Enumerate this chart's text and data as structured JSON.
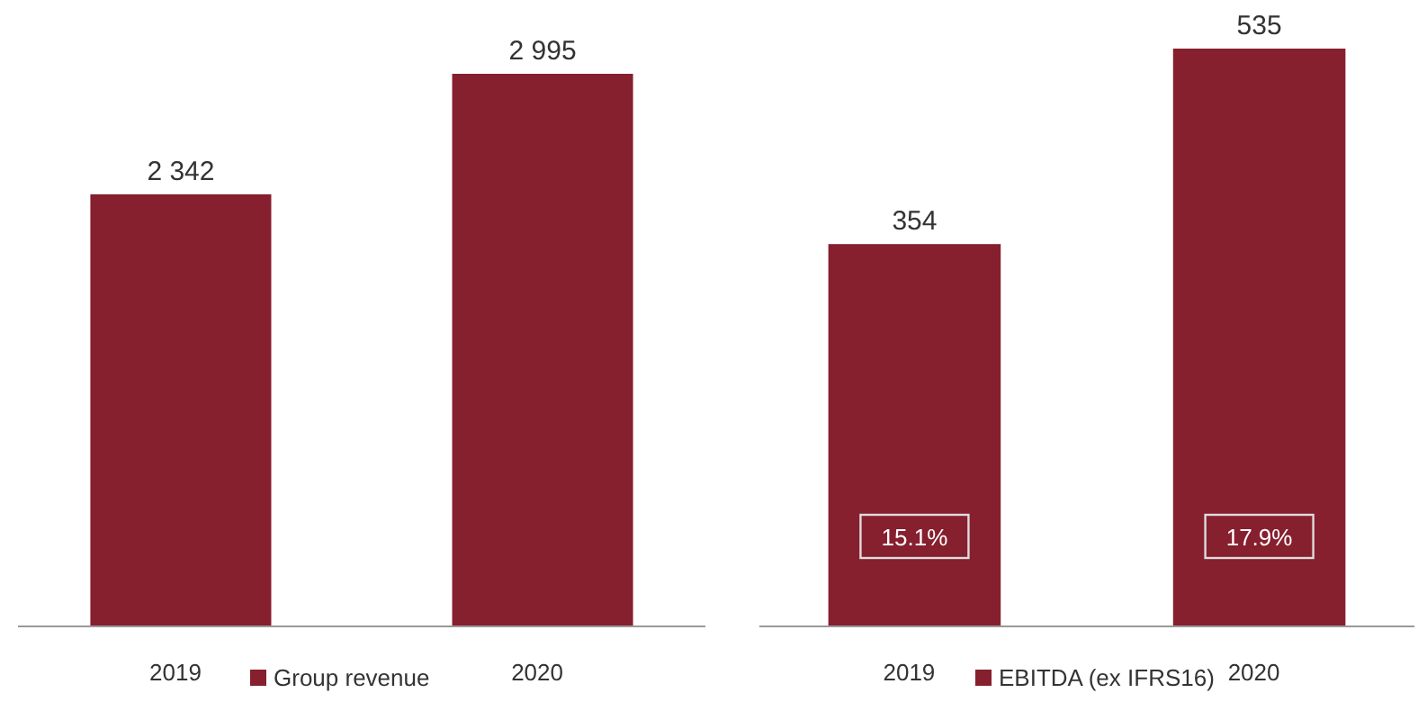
{
  "chart_data": [
    {
      "type": "bar",
      "categories": [
        "2019",
        "2020"
      ],
      "series": [
        {
          "name": "Group revenue",
          "color": "#861f2e",
          "values": [
            2342,
            2995
          ],
          "value_labels": [
            "2 342",
            "2 995"
          ]
        }
      ],
      "legend": "bottom"
    },
    {
      "type": "bar",
      "categories": [
        "2019",
        "2020"
      ],
      "series": [
        {
          "name": "EBITDA (ex IFRS16)",
          "color": "#861f2e",
          "values": [
            354,
            535
          ],
          "value_labels": [
            "354",
            "535"
          ]
        }
      ],
      "legend": "bottom",
      "annotations": [
        "15.1%",
        "17.9%"
      ]
    }
  ]
}
